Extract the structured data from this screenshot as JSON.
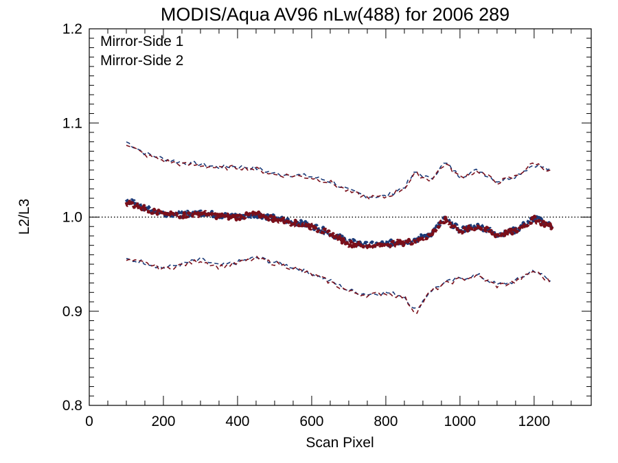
{
  "chart_data": {
    "type": "line",
    "title": "MODIS/Aqua AV96 nLw(488) for 2006 289",
    "xlabel": "Scan Pixel",
    "ylabel": "L2/L3",
    "xlim": [
      0,
      1354
    ],
    "ylim": [
      0.8,
      1.2
    ],
    "xticks": [
      0,
      200,
      400,
      600,
      800,
      1000,
      1200
    ],
    "yticks": [
      0.8,
      0.9,
      1.0,
      1.1,
      1.2
    ],
    "xtick_labels": [
      "0",
      "200",
      "400",
      "600",
      "800",
      "1000",
      "1200"
    ],
    "ytick_labels": [
      "0.8",
      "0.9",
      "1.0",
      "1.1",
      "1.2"
    ],
    "reference_line": 1.0,
    "grid": false,
    "legend_position": "top-left",
    "colors": {
      "ms1": "#1a3a78",
      "ms2": "#7a0f1a",
      "reference": "#000000"
    },
    "series": [
      {
        "name": "Mirror-Side 1",
        "color": "#1a3a78",
        "x": [
          100,
          150,
          200,
          250,
          300,
          350,
          400,
          450,
          500,
          550,
          600,
          650,
          700,
          750,
          800,
          850,
          880,
          920,
          960,
          1000,
          1050,
          1100,
          1150,
          1200,
          1250
        ],
        "mean": [
          1.018,
          1.01,
          1.004,
          1.003,
          1.005,
          1.002,
          1.001,
          1.003,
          0.999,
          0.995,
          0.991,
          0.983,
          0.974,
          0.97,
          0.972,
          0.974,
          0.976,
          0.982,
          0.998,
          0.986,
          0.991,
          0.982,
          0.986,
          0.999,
          0.99
        ],
        "upper": [
          1.08,
          1.068,
          1.062,
          1.058,
          1.056,
          1.053,
          1.054,
          1.052,
          1.046,
          1.045,
          1.043,
          1.038,
          1.028,
          1.022,
          1.022,
          1.032,
          1.048,
          1.04,
          1.058,
          1.043,
          1.05,
          1.038,
          1.044,
          1.056,
          1.049
        ],
        "lower": [
          0.955,
          0.952,
          0.946,
          0.95,
          0.955,
          0.948,
          0.952,
          0.957,
          0.952,
          0.947,
          0.94,
          0.932,
          0.922,
          0.918,
          0.92,
          0.916,
          0.9,
          0.922,
          0.93,
          0.935,
          0.938,
          0.928,
          0.932,
          0.944,
          0.93
        ]
      },
      {
        "name": "Mirror-Side 2",
        "color": "#7a0f1a",
        "x": [
          100,
          150,
          200,
          250,
          300,
          350,
          400,
          450,
          500,
          550,
          600,
          650,
          700,
          750,
          800,
          850,
          880,
          920,
          960,
          1000,
          1050,
          1100,
          1150,
          1200,
          1250
        ],
        "mean": [
          1.016,
          1.009,
          1.003,
          1.002,
          1.004,
          1.001,
          1.0,
          1.003,
          0.998,
          0.994,
          0.99,
          0.982,
          0.972,
          0.969,
          0.971,
          0.973,
          0.975,
          0.981,
          0.997,
          0.985,
          0.99,
          0.981,
          0.985,
          0.998,
          0.989
        ],
        "upper": [
          1.078,
          1.066,
          1.06,
          1.056,
          1.055,
          1.052,
          1.053,
          1.051,
          1.045,
          1.044,
          1.042,
          1.037,
          1.027,
          1.021,
          1.021,
          1.031,
          1.046,
          1.039,
          1.057,
          1.042,
          1.049,
          1.037,
          1.043,
          1.058,
          1.047
        ],
        "lower": [
          0.954,
          0.951,
          0.945,
          0.949,
          0.954,
          0.947,
          0.951,
          0.956,
          0.951,
          0.946,
          0.939,
          0.931,
          0.921,
          0.917,
          0.919,
          0.915,
          0.898,
          0.921,
          0.929,
          0.934,
          0.937,
          0.927,
          0.931,
          0.943,
          0.929
        ]
      }
    ]
  }
}
